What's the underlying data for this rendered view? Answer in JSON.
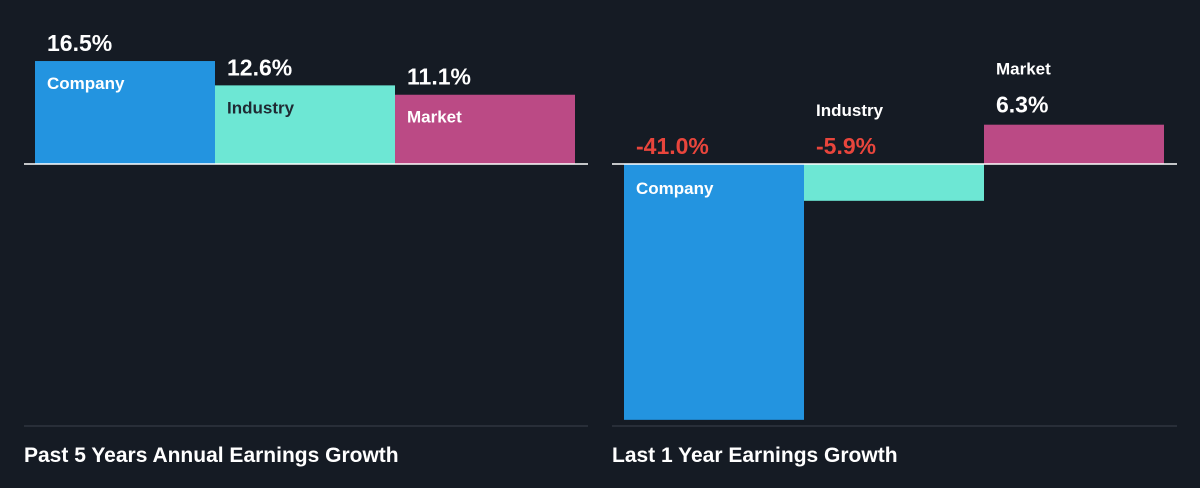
{
  "colors": {
    "background": "#151b24",
    "company": "#2394e0",
    "industry": "#6de7d4",
    "market": "#bb4a85",
    "positive_text": "#ffffff",
    "negative_text": "#e8453c",
    "baseline": "#ffffff",
    "gridline": "#3a414c"
  },
  "chart_data": [
    {
      "type": "bar",
      "title": "Past 5 Years Annual Earnings Growth",
      "categories": [
        "Company",
        "Industry",
        "Market"
      ],
      "values": [
        16.5,
        12.6,
        11.1
      ],
      "value_labels": [
        "16.5%",
        "12.6%",
        "11.1%"
      ],
      "unit": "%",
      "ylim": [
        -41,
        16.5
      ]
    },
    {
      "type": "bar",
      "title": "Last 1 Year Earnings Growth",
      "categories": [
        "Company",
        "Industry",
        "Market"
      ],
      "values": [
        -41.0,
        -5.9,
        6.3
      ],
      "value_labels": [
        "-41.0%",
        "-5.9%",
        "6.3%"
      ],
      "unit": "%",
      "ylim": [
        -41,
        16.5
      ]
    }
  ]
}
